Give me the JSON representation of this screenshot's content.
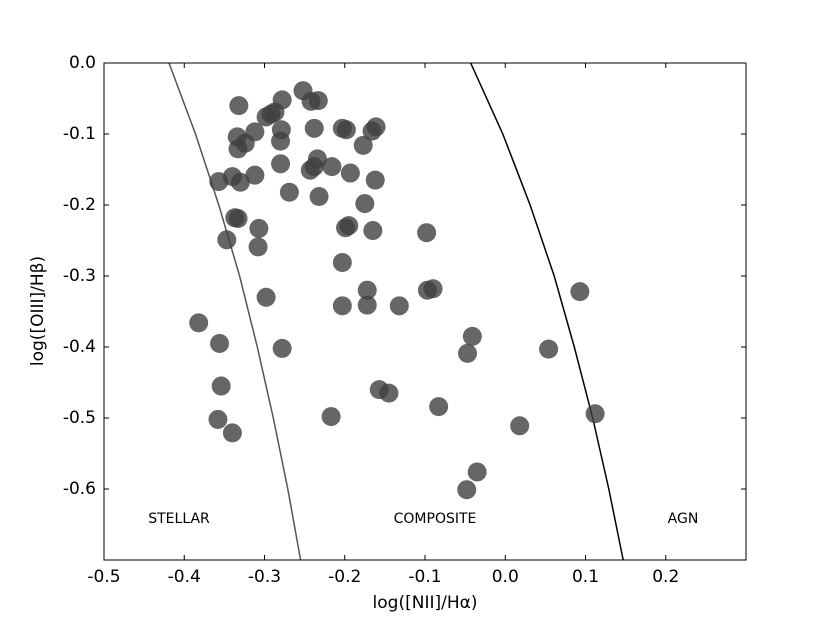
{
  "chart_data": {
    "type": "scatter",
    "xlabel": "log([NII]/Hα)",
    "ylabel": "log([OIII]/Hβ)",
    "annotations": [
      "STELLAR",
      "COMPOSITE",
      "AGN"
    ],
    "color": "#404040",
    "x": [
      -0.252,
      -0.242,
      -0.233,
      -0.278,
      -0.287,
      -0.292,
      -0.298,
      -0.279,
      -0.332,
      -0.238,
      -0.203,
      -0.198,
      -0.161,
      -0.166,
      -0.312,
      -0.334,
      -0.333,
      -0.324,
      -0.28,
      -0.234,
      -0.238,
      -0.243,
      -0.216,
      -0.177,
      -0.193,
      -0.28,
      -0.357,
      -0.34,
      -0.33,
      -0.312,
      -0.269,
      -0.232,
      -0.175,
      -0.162,
      -0.337,
      -0.333,
      -0.307,
      -0.347,
      -0.308,
      -0.195,
      -0.199,
      -0.165,
      -0.098,
      -0.203,
      -0.172,
      -0.097,
      -0.09,
      -0.203,
      -0.172,
      -0.132,
      -0.298,
      -0.382,
      -0.356,
      -0.278,
      -0.041,
      -0.047,
      0.054,
      0.093,
      -0.354,
      -0.157,
      -0.145,
      -0.358,
      -0.34,
      -0.217,
      -0.083,
      0.018,
      0.112,
      -0.035,
      -0.048
    ],
    "values": [
      -0.039,
      -0.054,
      -0.053,
      -0.052,
      -0.069,
      -0.072,
      -0.076,
      -0.094,
      -0.06,
      -0.092,
      -0.092,
      -0.094,
      -0.09,
      -0.096,
      -0.097,
      -0.104,
      -0.121,
      -0.113,
      -0.11,
      -0.135,
      -0.146,
      -0.151,
      -0.146,
      -0.116,
      -0.155,
      -0.142,
      -0.167,
      -0.16,
      -0.168,
      -0.158,
      -0.182,
      -0.188,
      -0.198,
      -0.165,
      -0.218,
      -0.219,
      -0.233,
      -0.249,
      -0.259,
      -0.229,
      -0.232,
      -0.236,
      -0.239,
      -0.281,
      -0.32,
      -0.32,
      -0.318,
      -0.342,
      -0.341,
      -0.342,
      -0.33,
      -0.366,
      -0.395,
      -0.402,
      -0.385,
      -0.409,
      -0.403,
      -0.322,
      -0.455,
      -0.46,
      -0.465,
      -0.502,
      -0.521,
      -0.498,
      -0.484,
      -0.511,
      -0.494,
      -0.576,
      -0.601
    ],
    "lines": [
      {
        "color": "#555555",
        "x": [
          -0.419,
          -0.386,
          -0.357,
          -0.331,
          -0.309,
          -0.289,
          -0.271,
          -0.255
        ],
        "values": [
          0,
          -0.1,
          -0.2,
          -0.3,
          -0.4,
          -0.5,
          -0.6,
          -0.7
        ]
      },
      {
        "color": "#000000",
        "x": [
          -0.043,
          -0.003,
          0.031,
          0.061,
          0.086,
          0.109,
          0.129,
          0.147
        ],
        "values": [
          0,
          -0.1,
          -0.2,
          -0.3,
          -0.4,
          -0.5,
          -0.6,
          -0.7
        ]
      }
    ],
    "xlim": [
      -0.5,
      0.3
    ],
    "ylim": [
      -0.7,
      0
    ],
    "xticks": [
      -0.5,
      -0.4,
      -0.3,
      -0.2,
      -0.1,
      {
        "value": 0,
        "label": "0.0"
      },
      0.1,
      0.2
    ],
    "yticks": [
      {
        "value": 0,
        "label": "0.0"
      },
      -0.1,
      -0.2,
      -0.3,
      -0.4,
      -0.5,
      -0.6
    ]
  }
}
